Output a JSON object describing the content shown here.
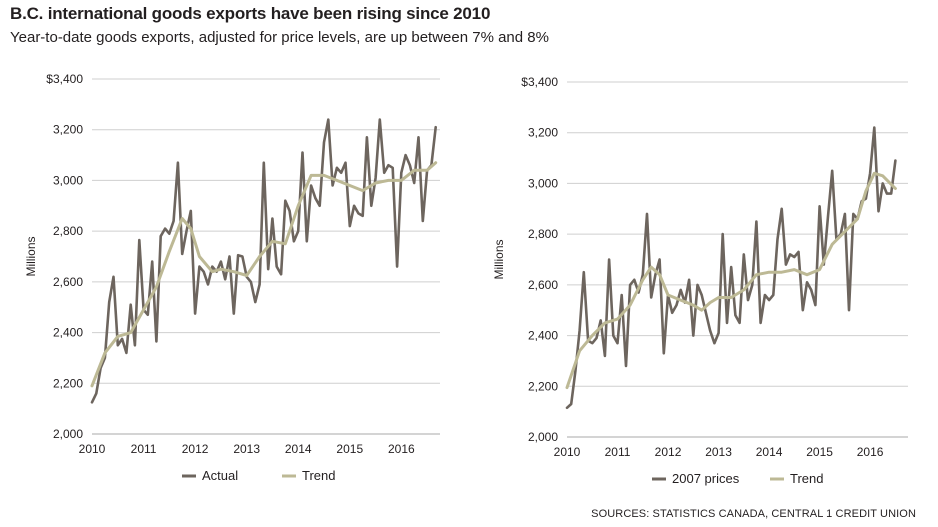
{
  "header": {
    "title": "B.C. international goods exports have been rising since 2010",
    "subtitle": "Year-to-date goods exports, adjusted for price levels, are up between 7% and 8%"
  },
  "source": "SOURCES: STATISTICS CANADA, CENTRAL 1 CREDIT UNION",
  "colors": {
    "actual": "#6d655e",
    "trend": "#bdb995",
    "grid": "#cfcfcf"
  },
  "chart_data": [
    {
      "type": "line",
      "ylabel": "Millions",
      "ylim": [
        2000,
        3400
      ],
      "yticks": [
        2000,
        2200,
        2400,
        2600,
        2800,
        3000,
        3200,
        3400
      ],
      "ytick_labels": [
        "2,000",
        "2,200",
        "2,400",
        "2,600",
        "2,800",
        "3,000",
        "3,200",
        "$3,400"
      ],
      "xlim": [
        2010,
        2016.75
      ],
      "xticks": [
        2010,
        2011,
        2012,
        2013,
        2014,
        2015,
        2016
      ],
      "xtick_labels": [
        "2010",
        "2011",
        "2012",
        "2013",
        "2014",
        "2015",
        "2016"
      ],
      "grid": true,
      "legend_position": "bottom",
      "series": [
        {
          "name": "Actual",
          "color_key": "actual",
          "points": [
            [
              2010.0,
              2125
            ],
            [
              2010.083,
              2160
            ],
            [
              2010.167,
              2260
            ],
            [
              2010.25,
              2300
            ],
            [
              2010.333,
              2520
            ],
            [
              2010.417,
              2620
            ],
            [
              2010.5,
              2350
            ],
            [
              2010.583,
              2375
            ],
            [
              2010.667,
              2320
            ],
            [
              2010.75,
              2510
            ],
            [
              2010.833,
              2350
            ],
            [
              2010.917,
              2765
            ],
            [
              2011.0,
              2490
            ],
            [
              2011.083,
              2470
            ],
            [
              2011.167,
              2680
            ],
            [
              2011.25,
              2365
            ],
            [
              2011.333,
              2780
            ],
            [
              2011.417,
              2810
            ],
            [
              2011.5,
              2790
            ],
            [
              2011.583,
              2840
            ],
            [
              2011.667,
              3070
            ],
            [
              2011.75,
              2710
            ],
            [
              2011.833,
              2800
            ],
            [
              2011.917,
              2880
            ],
            [
              2012.0,
              2475
            ],
            [
              2012.083,
              2660
            ],
            [
              2012.167,
              2640
            ],
            [
              2012.25,
              2590
            ],
            [
              2012.333,
              2660
            ],
            [
              2012.417,
              2640
            ],
            [
              2012.5,
              2680
            ],
            [
              2012.583,
              2610
            ],
            [
              2012.667,
              2700
            ],
            [
              2012.75,
              2475
            ],
            [
              2012.833,
              2705
            ],
            [
              2012.917,
              2700
            ],
            [
              2013.0,
              2620
            ],
            [
              2013.083,
              2600
            ],
            [
              2013.167,
              2520
            ],
            [
              2013.25,
              2590
            ],
            [
              2013.333,
              3070
            ],
            [
              2013.417,
              2650
            ],
            [
              2013.5,
              2850
            ],
            [
              2013.583,
              2660
            ],
            [
              2013.667,
              2630
            ],
            [
              2013.75,
              2920
            ],
            [
              2013.833,
              2880
            ],
            [
              2013.917,
              2760
            ],
            [
              2014.0,
              2800
            ],
            [
              2014.083,
              3110
            ],
            [
              2014.167,
              2760
            ],
            [
              2014.25,
              2980
            ],
            [
              2014.333,
              2930
            ],
            [
              2014.417,
              2900
            ],
            [
              2014.5,
              3150
            ],
            [
              2014.583,
              3240
            ],
            [
              2014.667,
              2980
            ],
            [
              2014.75,
              3050
            ],
            [
              2014.833,
              3030
            ],
            [
              2014.917,
              3070
            ],
            [
              2015.0,
              2820
            ],
            [
              2015.083,
              2900
            ],
            [
              2015.167,
              2870
            ],
            [
              2015.25,
              2860
            ],
            [
              2015.333,
              3170
            ],
            [
              2015.417,
              2900
            ],
            [
              2015.5,
              3010
            ],
            [
              2015.583,
              3240
            ],
            [
              2015.667,
              3030
            ],
            [
              2015.75,
              3060
            ],
            [
              2015.833,
              3050
            ],
            [
              2015.917,
              2660
            ],
            [
              2016.0,
              3030
            ],
            [
              2016.083,
              3100
            ],
            [
              2016.167,
              3060
            ],
            [
              2016.25,
              2990
            ],
            [
              2016.333,
              3170
            ],
            [
              2016.417,
              2840
            ],
            [
              2016.5,
              3040
            ],
            [
              2016.583,
              3060
            ],
            [
              2016.667,
              3210
            ]
          ]
        },
        {
          "name": "Trend",
          "color_key": "trend",
          "points": [
            [
              2010.0,
              2190
            ],
            [
              2010.25,
              2320
            ],
            [
              2010.5,
              2385
            ],
            [
              2010.75,
              2400
            ],
            [
              2011.0,
              2490
            ],
            [
              2011.25,
              2580
            ],
            [
              2011.5,
              2720
            ],
            [
              2011.75,
              2850
            ],
            [
              2011.917,
              2810
            ],
            [
              2012.083,
              2700
            ],
            [
              2012.333,
              2640
            ],
            [
              2012.5,
              2650
            ],
            [
              2012.75,
              2640
            ],
            [
              2013.0,
              2625
            ],
            [
              2013.25,
              2700
            ],
            [
              2013.5,
              2760
            ],
            [
              2013.75,
              2750
            ],
            [
              2014.0,
              2900
            ],
            [
              2014.25,
              3020
            ],
            [
              2014.5,
              3020
            ],
            [
              2014.75,
              3000
            ],
            [
              2015.0,
              2980
            ],
            [
              2015.25,
              2960
            ],
            [
              2015.5,
              2990
            ],
            [
              2015.75,
              3000
            ],
            [
              2016.0,
              3000
            ],
            [
              2016.25,
              3040
            ],
            [
              2016.5,
              3040
            ],
            [
              2016.667,
              3070
            ]
          ]
        }
      ]
    },
    {
      "type": "line",
      "ylabel": "Millions",
      "ylim": [
        2000,
        3400
      ],
      "yticks": [
        2000,
        2200,
        2400,
        2600,
        2800,
        3000,
        3200,
        3400
      ],
      "ytick_labels": [
        "2,000",
        "2,200",
        "2,400",
        "2,600",
        "2,800",
        "3,000",
        "3,200",
        "$3,400"
      ],
      "xlim": [
        2010,
        2016.75
      ],
      "xticks": [
        2010,
        2011,
        2012,
        2013,
        2014,
        2015,
        2016
      ],
      "xtick_labels": [
        "2010",
        "2011",
        "2012",
        "2013",
        "2014",
        "2015",
        "2016"
      ],
      "grid": true,
      "legend_position": "bottom",
      "series": [
        {
          "name": "2007 prices",
          "color_key": "actual",
          "points": [
            [
              2010.0,
              2115
            ],
            [
              2010.083,
              2130
            ],
            [
              2010.167,
              2260
            ],
            [
              2010.25,
              2420
            ],
            [
              2010.333,
              2650
            ],
            [
              2010.417,
              2380
            ],
            [
              2010.5,
              2370
            ],
            [
              2010.583,
              2390
            ],
            [
              2010.667,
              2460
            ],
            [
              2010.75,
              2320
            ],
            [
              2010.833,
              2700
            ],
            [
              2010.917,
              2400
            ],
            [
              2011.0,
              2370
            ],
            [
              2011.083,
              2560
            ],
            [
              2011.167,
              2280
            ],
            [
              2011.25,
              2600
            ],
            [
              2011.333,
              2620
            ],
            [
              2011.417,
              2570
            ],
            [
              2011.5,
              2640
            ],
            [
              2011.583,
              2880
            ],
            [
              2011.667,
              2550
            ],
            [
              2011.75,
              2640
            ],
            [
              2011.833,
              2700
            ],
            [
              2011.917,
              2330
            ],
            [
              2012.0,
              2560
            ],
            [
              2012.083,
              2490
            ],
            [
              2012.167,
              2520
            ],
            [
              2012.25,
              2580
            ],
            [
              2012.333,
              2530
            ],
            [
              2012.417,
              2620
            ],
            [
              2012.5,
              2400
            ],
            [
              2012.583,
              2600
            ],
            [
              2012.667,
              2560
            ],
            [
              2012.75,
              2490
            ],
            [
              2012.833,
              2420
            ],
            [
              2012.917,
              2370
            ],
            [
              2013.0,
              2410
            ],
            [
              2013.083,
              2800
            ],
            [
              2013.167,
              2450
            ],
            [
              2013.25,
              2670
            ],
            [
              2013.333,
              2480
            ],
            [
              2013.417,
              2450
            ],
            [
              2013.5,
              2720
            ],
            [
              2013.583,
              2540
            ],
            [
              2013.667,
              2600
            ],
            [
              2013.75,
              2850
            ],
            [
              2013.833,
              2450
            ],
            [
              2013.917,
              2560
            ],
            [
              2014.0,
              2540
            ],
            [
              2014.083,
              2560
            ],
            [
              2014.167,
              2780
            ],
            [
              2014.25,
              2900
            ],
            [
              2014.333,
              2680
            ],
            [
              2014.417,
              2720
            ],
            [
              2014.5,
              2710
            ],
            [
              2014.583,
              2730
            ],
            [
              2014.667,
              2500
            ],
            [
              2014.75,
              2610
            ],
            [
              2014.833,
              2580
            ],
            [
              2014.917,
              2520
            ],
            [
              2015.0,
              2910
            ],
            [
              2015.083,
              2680
            ],
            [
              2015.167,
              2870
            ],
            [
              2015.25,
              3050
            ],
            [
              2015.333,
              2780
            ],
            [
              2015.417,
              2800
            ],
            [
              2015.5,
              2880
            ],
            [
              2015.583,
              2500
            ],
            [
              2015.667,
              2880
            ],
            [
              2015.75,
              2860
            ],
            [
              2015.833,
              2930
            ],
            [
              2015.917,
              2940
            ],
            [
              2016.0,
              3040
            ],
            [
              2016.083,
              3220
            ],
            [
              2016.167,
              2890
            ],
            [
              2016.25,
              3000
            ],
            [
              2016.333,
              2960
            ],
            [
              2016.417,
              2960
            ],
            [
              2016.5,
              3090
            ]
          ]
        },
        {
          "name": "Trend",
          "color_key": "trend",
          "points": [
            [
              2010.0,
              2195
            ],
            [
              2010.25,
              2340
            ],
            [
              2010.5,
              2400
            ],
            [
              2010.75,
              2450
            ],
            [
              2011.0,
              2465
            ],
            [
              2011.25,
              2520
            ],
            [
              2011.5,
              2620
            ],
            [
              2011.667,
              2670
            ],
            [
              2011.833,
              2640
            ],
            [
              2012.0,
              2560
            ],
            [
              2012.25,
              2540
            ],
            [
              2012.5,
              2520
            ],
            [
              2012.667,
              2500
            ],
            [
              2012.833,
              2530
            ],
            [
              2013.0,
              2550
            ],
            [
              2013.25,
              2550
            ],
            [
              2013.5,
              2580
            ],
            [
              2013.75,
              2640
            ],
            [
              2014.0,
              2650
            ],
            [
              2014.25,
              2650
            ],
            [
              2014.5,
              2660
            ],
            [
              2014.75,
              2640
            ],
            [
              2015.0,
              2660
            ],
            [
              2015.25,
              2760
            ],
            [
              2015.5,
              2810
            ],
            [
              2015.75,
              2860
            ],
            [
              2015.917,
              2970
            ],
            [
              2016.083,
              3040
            ],
            [
              2016.25,
              3030
            ],
            [
              2016.5,
              2980
            ]
          ]
        }
      ]
    }
  ]
}
